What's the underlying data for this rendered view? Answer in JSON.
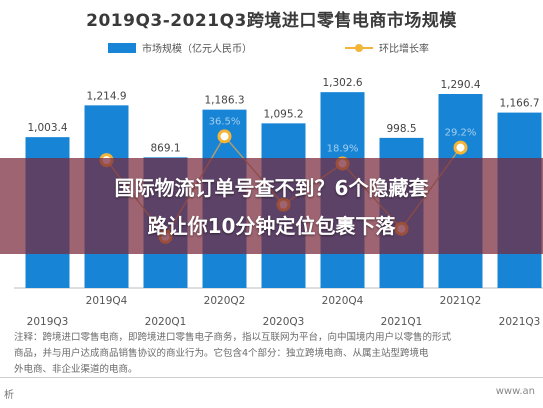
{
  "chart_data": {
    "type": "bar",
    "title": "2019Q3-2021Q3跨境进口零售电商市场规模",
    "categories": [
      "2019Q3",
      "2019Q4",
      "2020Q1",
      "2020Q2",
      "2020Q3",
      "2020Q4",
      "2021Q1",
      "2021Q2",
      "2021Q3"
    ],
    "series": [
      {
        "name": "市场规模（亿元人民币）",
        "type": "bar",
        "color": "#1784d6",
        "values": [
          1003.4,
          1214.9,
          869.1,
          1186.3,
          1095.2,
          1302.6,
          998.5,
          1290.4,
          1166.7
        ],
        "labels": [
          "1,003.4",
          "1,214.9",
          "869.1",
          "1,186.3",
          "1,095.2",
          "1,302.6",
          "998.5",
          "1,290.4",
          "1,166.7"
        ]
      },
      {
        "name": "环比增长率",
        "type": "line",
        "color": "#f4b437",
        "values": [
          null,
          21.1,
          -28.5,
          36.5,
          -7.7,
          18.9,
          -23.3,
          29.2,
          null
        ],
        "labels": [
          "",
          "",
          "",
          "36.5%",
          "",
          "18.9%",
          "",
          "29.2%",
          ""
        ]
      }
    ],
    "ylim": [
      0,
      1450
    ],
    "legend_position": "top"
  },
  "notes": [
    "注释：跨境进口零售电商，即跨境进口零售电子商务，指以互联网为平台，向中国境内用户以零售的形式",
    "商品，并与用户达成商品销售协议的商业行为。它包含4个部分：独立跨境电商、从属主站型跨境电",
    "外电商、非企业渠道的电商。"
  ],
  "footer": {
    "left": "析",
    "right": "www.an"
  },
  "banner": {
    "line1": "国际物流订单号查不到？6个隐藏套",
    "line2": "路让你10分钟定位包裹下落"
  }
}
